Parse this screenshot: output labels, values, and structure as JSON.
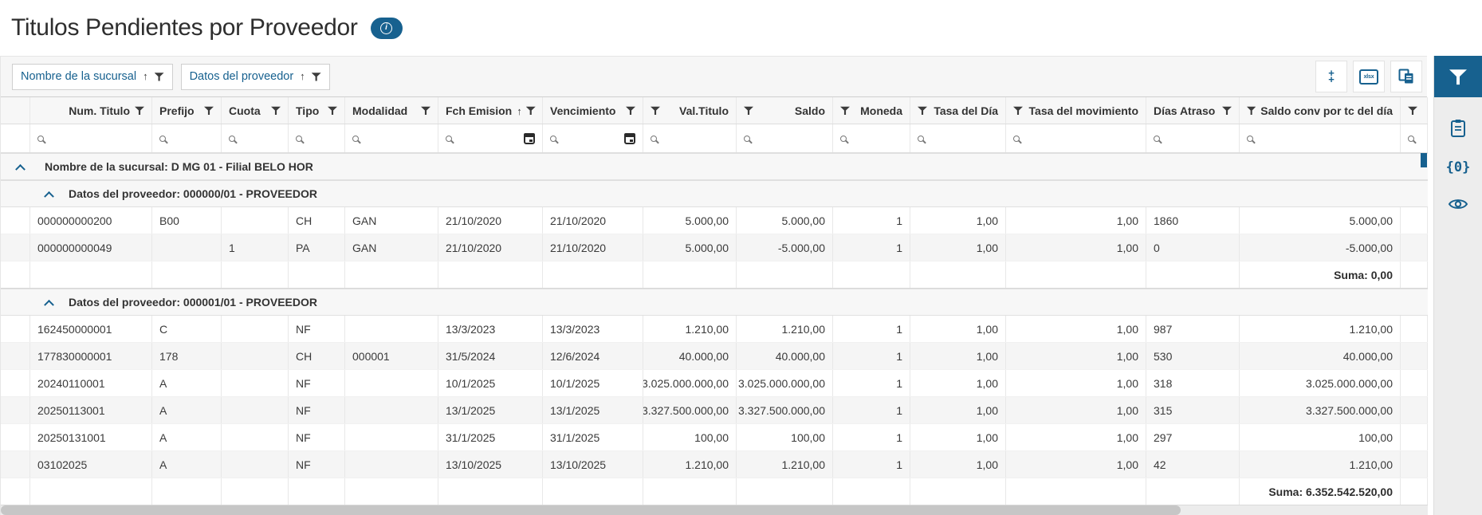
{
  "page": {
    "title": "Titulos Pendientes por Proveedor",
    "info_glyph": "i"
  },
  "colors": {
    "accent": "#17618F",
    "stripe": "#f5f5f5",
    "panel_bg": "#f6f6f6"
  },
  "group_panel": {
    "chips": [
      {
        "label": "Nombre de la sucursal",
        "sorted": "asc",
        "icon": "funnel-icon"
      },
      {
        "label": "Datos del proveedor",
        "sorted": "asc",
        "icon": "funnel-icon"
      }
    ]
  },
  "toolbar": {
    "buttons": [
      {
        "name": "expand-collapse-all-button",
        "icon": "expand-collapse-all-icon",
        "glyph_top": "+",
        "glyph_bottom": "+"
      },
      {
        "name": "export-xlsx-button",
        "icon": "export-xlsx-icon",
        "label": "xlsx"
      },
      {
        "name": "column-chooser-button",
        "icon": "column-chooser-icon"
      }
    ]
  },
  "sidebar": {
    "items": [
      {
        "name": "filter-panel-toggle",
        "icon": "filter-icon",
        "active": true
      },
      {
        "name": "clipboard-panel-toggle",
        "icon": "clipboard-icon",
        "active": false
      },
      {
        "name": "parameters-panel-toggle",
        "icon": "braces-zero-icon",
        "glyph": "{0}",
        "active": false
      },
      {
        "name": "preview-panel-toggle",
        "icon": "eye-icon",
        "active": false
      }
    ]
  },
  "grid": {
    "columns": [
      {
        "label": "Num. Titulo",
        "filter_icon": "funnel-icon",
        "search_icon": "magnifier-icon"
      },
      {
        "label": "Prefijo",
        "filter_icon": "funnel-icon",
        "search_icon": "magnifier-icon"
      },
      {
        "label": "Cuota",
        "filter_icon": "funnel-icon",
        "search_icon": "magnifier-icon"
      },
      {
        "label": "Tipo",
        "filter_icon": "funnel-icon",
        "search_icon": "magnifier-icon"
      },
      {
        "label": "Modalidad",
        "filter_icon": "funnel-icon",
        "search_icon": "magnifier-icon"
      },
      {
        "label": "Fch Emision",
        "sorted": "asc",
        "filter_icon": "funnel-icon",
        "search_icon": "magnifier-icon",
        "calendar_icon": "calendar-icon"
      },
      {
        "label": "Vencimiento",
        "filter_icon": "funnel-icon",
        "search_icon": "magnifier-icon",
        "calendar_icon": "calendar-icon"
      },
      {
        "label": "Val.Titulo",
        "filter_icon": "funnel-icon",
        "search_icon": "magnifier-icon"
      },
      {
        "label": "Saldo",
        "filter_icon": "funnel-icon",
        "search_icon": "magnifier-icon"
      },
      {
        "label": "Moneda",
        "filter_icon": "funnel-icon",
        "search_icon": "magnifier-icon"
      },
      {
        "label": "Tasa del Día",
        "filter_icon": "funnel-icon",
        "search_icon": "magnifier-icon"
      },
      {
        "label": "Tasa del movimiento",
        "filter_icon": "funnel-icon",
        "search_icon": "magnifier-icon"
      },
      {
        "label": "Días Atraso",
        "filter_icon": "funnel-icon",
        "search_icon": "magnifier-icon"
      },
      {
        "label": "Saldo conv por tc del día",
        "filter_icon": "funnel-icon",
        "search_icon": "magnifier-icon"
      },
      {
        "label": "",
        "filter_icon": "funnel-icon",
        "search_icon": "magnifier-icon"
      }
    ],
    "sucursal_group": {
      "label": "Nombre de la sucursal: D MG 01 - Filial BELO HOR"
    },
    "provider_groups": [
      {
        "label": "Datos del proveedor: 000000/01 - PROVEEDOR",
        "rows": [
          [
            "000000000200",
            "B00",
            "",
            "CH",
            "GAN",
            "21/10/2020",
            "21/10/2020",
            "5.000,00",
            "5.000,00",
            "1",
            "1,00",
            "1,00",
            "1860",
            "5.000,00"
          ],
          [
            "000000000049",
            "",
            "1",
            "PA",
            "GAN",
            "21/10/2020",
            "21/10/2020",
            "5.000,00",
            "-5.000,00",
            "1",
            "1,00",
            "1,00",
            "0",
            "-5.000,00"
          ]
        ],
        "summary": "Suma: 0,00"
      },
      {
        "label": "Datos del proveedor: 000001/01 - PROVEEDOR",
        "rows": [
          [
            "162450000001",
            "C",
            "",
            "NF",
            "",
            "13/3/2023",
            "13/3/2023",
            "1.210,00",
            "1.210,00",
            "1",
            "1,00",
            "1,00",
            "987",
            "1.210,00"
          ],
          [
            "177830000001",
            "178",
            "",
            "CH",
            "000001",
            "31/5/2024",
            "12/6/2024",
            "40.000,00",
            "40.000,00",
            "1",
            "1,00",
            "1,00",
            "530",
            "40.000,00"
          ],
          [
            "20240110001",
            "A",
            "",
            "NF",
            "",
            "10/1/2025",
            "10/1/2025",
            "3.025.000.000,00",
            "3.025.000.000,00",
            "1",
            "1,00",
            "1,00",
            "318",
            "3.025.000.000,00"
          ],
          [
            "20250113001",
            "A",
            "",
            "NF",
            "",
            "13/1/2025",
            "13/1/2025",
            "3.327.500.000,00",
            "3.327.500.000,00",
            "1",
            "1,00",
            "1,00",
            "315",
            "3.327.500.000,00"
          ],
          [
            "20250131001",
            "A",
            "",
            "NF",
            "",
            "31/1/2025",
            "31/1/2025",
            "100,00",
            "100,00",
            "1",
            "1,00",
            "1,00",
            "297",
            "100,00"
          ],
          [
            "03102025",
            "A",
            "",
            "NF",
            "",
            "13/10/2025",
            "13/10/2025",
            "1.210,00",
            "1.210,00",
            "1",
            "1,00",
            "1,00",
            "42",
            "1.210,00"
          ]
        ],
        "summary": "Suma: 6.352.542.520,00"
      }
    ]
  }
}
